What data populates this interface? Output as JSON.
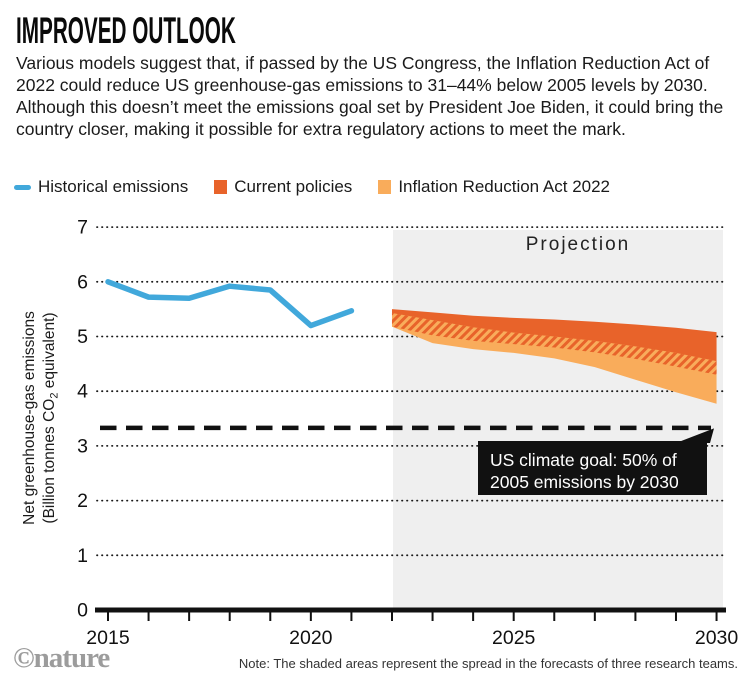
{
  "header": {
    "title": "IMPROVED OUTLOOK",
    "description": "Various models suggest that, if passed by the US Congress, the Inflation Reduction Act of 2022 could reduce US greenhouse-gas emissions to 31–44% below 2005 levels by 2030. Although this doesn’t meet the emissions goal set by President Joe Biden, it could bring the country closer, making it possible for extra regulatory actions to meet the mark.",
    "accent_title_color": "#0a0a0a"
  },
  "legend": [
    {
      "label": "Historical emissions",
      "color": "#41A8DB",
      "swatch": "line"
    },
    {
      "label": "Current policies",
      "color": "#E8632A",
      "swatch": "square"
    },
    {
      "label": "Inflation Reduction Act 2022",
      "color": "#F9AC5B",
      "swatch": "square"
    }
  ],
  "chart_data": {
    "type": "line",
    "title": "",
    "ylabel": {
      "line1": "Net greenhouse-gas emissions",
      "line2_pre": "(Billion tonnes CO",
      "line2_sub": "2",
      "line2_post": " equivalent)"
    },
    "ylim": [
      0,
      7
    ],
    "yticks": [
      0,
      1,
      2,
      3,
      4,
      5,
      6,
      7
    ],
    "xlim": [
      2015,
      2030
    ],
    "xticks_all_years": true,
    "xtick_labels": [
      2015,
      2020,
      2025,
      2030
    ],
    "grid": "dotted-horizontal",
    "projection": {
      "label": "Projection",
      "start_year": 2022,
      "end_year": 2030,
      "fill": "#EFEFEF"
    },
    "series": [
      {
        "name": "Historical emissions",
        "kind": "line",
        "color": "#41A8DB",
        "x": [
          2015,
          2016,
          2017,
          2018,
          2019,
          2020,
          2021
        ],
        "y": [
          6.0,
          5.72,
          5.7,
          5.92,
          5.85,
          5.2,
          5.47
        ]
      },
      {
        "name": "Current policies",
        "kind": "band",
        "color": "#E8632A",
        "x": [
          2022,
          2023,
          2024,
          2025,
          2026,
          2027,
          2028,
          2029,
          2030
        ],
        "upper": [
          5.5,
          5.44,
          5.38,
          5.34,
          5.31,
          5.27,
          5.22,
          5.16,
          5.08
        ],
        "lower": [
          5.18,
          5.02,
          4.92,
          4.86,
          4.8,
          4.71,
          4.59,
          4.45,
          4.3
        ]
      },
      {
        "name": "Inflation Reduction Act 2022",
        "kind": "band",
        "color": "#F9AC5B",
        "x": [
          2022,
          2023,
          2024,
          2025,
          2026,
          2027,
          2028,
          2029,
          2030
        ],
        "upper": [
          5.43,
          5.3,
          5.17,
          5.07,
          5.0,
          4.92,
          4.82,
          4.7,
          4.55
        ],
        "lower": [
          5.18,
          4.88,
          4.77,
          4.7,
          4.6,
          4.44,
          4.21,
          3.98,
          3.77
        ]
      }
    ],
    "overlap_hatch": {
      "between": [
        "Current policies",
        "Inflation Reduction Act 2022"
      ],
      "stripe_color": "#E8632A"
    },
    "goal_line": {
      "value": 3.33,
      "style": "dashed",
      "color": "#111111",
      "tooltip_line1": "US climate goal: 50% of",
      "tooltip_line2": "2005 emissions by 2030",
      "tooltip_bg": "#111111",
      "tooltip_text_color": "#ffffff"
    }
  },
  "footer": {
    "logo": "©nature",
    "note": "Note: The shaded areas represent the spread in the forecasts of three research teams."
  }
}
